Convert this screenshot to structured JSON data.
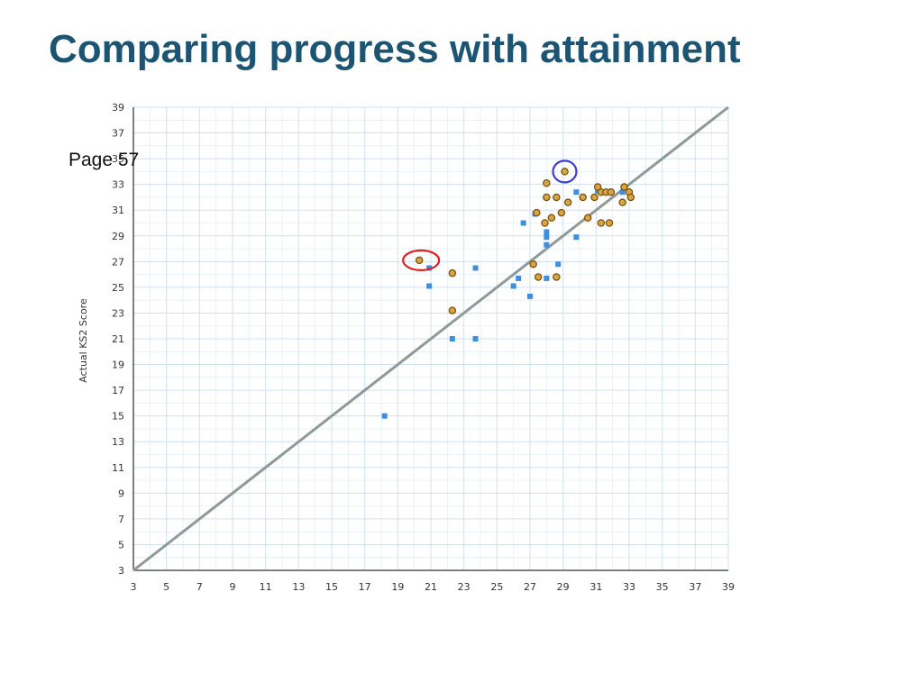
{
  "slide": {
    "title": "Comparing progress with attainment",
    "page_label": "Page 57"
  },
  "colors": {
    "title": "#1c5474",
    "grid": "#cfe0f3",
    "diagonal": "#8e9a95",
    "square": "#3b8fe3",
    "circle_fill": "#d9a441",
    "circle_stroke": "#7a5410",
    "highlight_red": "#e02020",
    "highlight_blue": "#3a3ad8"
  },
  "chart_data": {
    "type": "scatter",
    "title": "",
    "xlabel": "",
    "ylabel": "Actual KS2 Score",
    "xlim": [
      3,
      39
    ],
    "ylim": [
      3,
      39
    ],
    "x_ticks": [
      "3",
      "5",
      "7",
      "9",
      "11",
      "13",
      "15",
      "17",
      "19",
      "21",
      "23",
      "25",
      "27",
      "29",
      "31",
      "33",
      "35",
      "37",
      "39"
    ],
    "y_ticks": [
      "3",
      "5",
      "7",
      "9",
      "11",
      "13",
      "15",
      "17",
      "19",
      "21",
      "23",
      "25",
      "27",
      "29",
      "31",
      "33",
      "35",
      "37",
      "39"
    ],
    "grid": true,
    "reference_line": {
      "from": [
        3,
        3
      ],
      "to": [
        39,
        39
      ]
    },
    "series": [
      {
        "marker": "square",
        "points": [
          [
            18.2,
            15
          ],
          [
            20.9,
            26.5
          ],
          [
            20.9,
            25.1
          ],
          [
            22.3,
            21
          ],
          [
            23.7,
            21
          ],
          [
            23.7,
            26.5
          ],
          [
            26,
            25.1
          ],
          [
            26.3,
            25.7
          ],
          [
            26.6,
            30
          ],
          [
            27,
            24.3
          ],
          [
            27.3,
            30.7
          ],
          [
            28,
            25.7
          ],
          [
            28,
            28.3
          ],
          [
            28,
            28.9
          ],
          [
            28,
            29.3
          ],
          [
            28.7,
            26.8
          ],
          [
            29.8,
            28.9
          ],
          [
            29.8,
            32.4
          ],
          [
            31.1,
            32.5
          ],
          [
            32.6,
            32.4
          ]
        ]
      },
      {
        "marker": "circle",
        "points": [
          [
            20.3,
            27.1
          ],
          [
            22.3,
            26.1
          ],
          [
            22.3,
            23.2
          ],
          [
            27.2,
            26.8
          ],
          [
            27.4,
            30.8
          ],
          [
            27.5,
            25.8
          ],
          [
            27.9,
            30
          ],
          [
            28,
            33.1
          ],
          [
            28,
            32
          ],
          [
            28.3,
            30.4
          ],
          [
            28.6,
            32
          ],
          [
            28.6,
            25.8
          ],
          [
            28.9,
            30.8
          ],
          [
            29.1,
            34
          ],
          [
            29.3,
            31.6
          ],
          [
            30.2,
            32
          ],
          [
            30.5,
            30.4
          ],
          [
            30.9,
            32
          ],
          [
            31.1,
            32.8
          ],
          [
            31.3,
            32.4
          ],
          [
            31.3,
            30
          ],
          [
            31.6,
            32.4
          ],
          [
            31.8,
            30
          ],
          [
            31.9,
            32.4
          ],
          [
            32.6,
            31.6
          ],
          [
            32.7,
            32.8
          ],
          [
            33,
            32.4
          ],
          [
            33.1,
            32
          ]
        ]
      }
    ],
    "highlights": [
      {
        "color": "red",
        "center": [
          20.3,
          27.1
        ]
      },
      {
        "color": "blue",
        "center": [
          29.1,
          34
        ]
      }
    ]
  }
}
